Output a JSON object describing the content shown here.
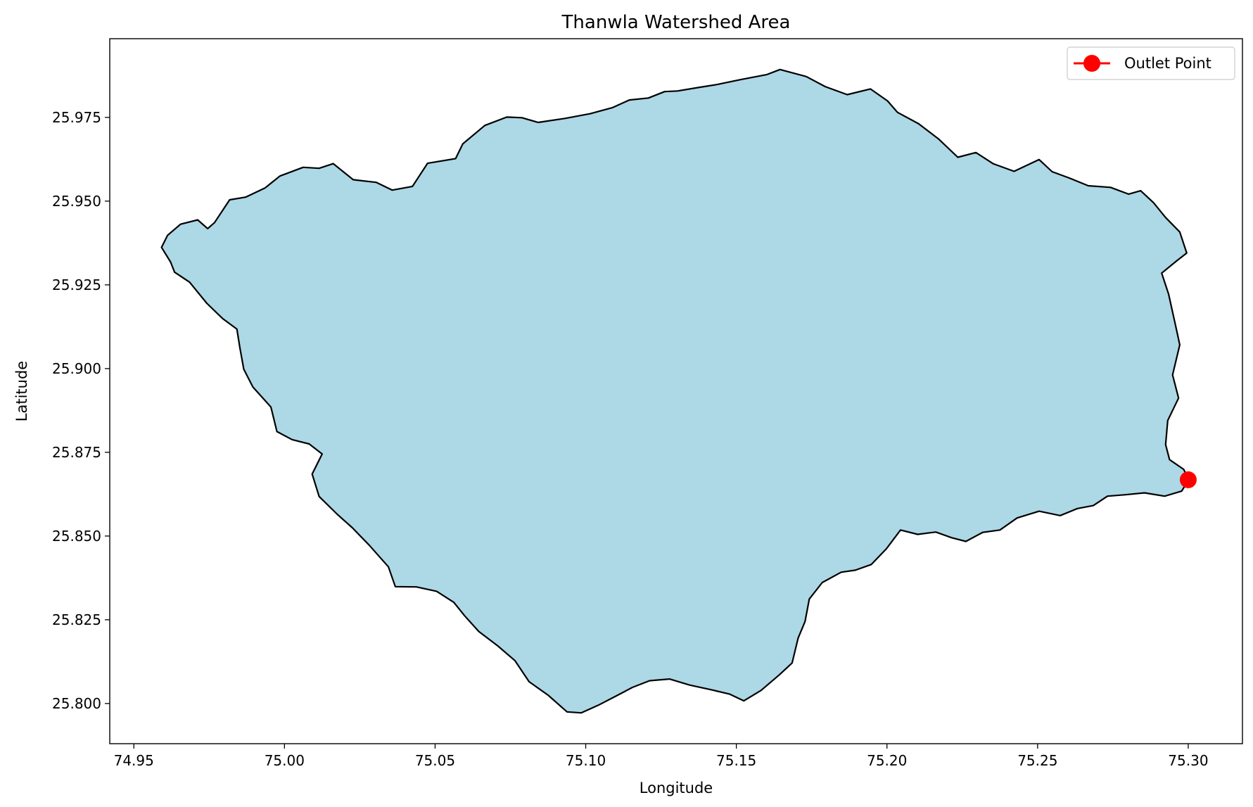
{
  "title": "Thanwla Watershed Area",
  "colors": {
    "watershed_fill": "#add8e6",
    "boundary": "#000000",
    "outlet": "#ff0000"
  },
  "chart_data": {
    "type": "map",
    "title": "Thanwla Watershed Area",
    "xlabel": "Longitude",
    "ylabel": "Latitude",
    "xlim": [
      74.942,
      75.318
    ],
    "ylim": [
      25.788,
      25.9985
    ],
    "x_ticks": [
      "74.95",
      "75.00",
      "75.05",
      "75.10",
      "75.15",
      "75.20",
      "75.25",
      "75.30"
    ],
    "y_ticks": [
      "25.800",
      "25.825",
      "25.850",
      "25.875",
      "25.900",
      "25.925",
      "25.950",
      "25.975"
    ],
    "grid": false,
    "legend": {
      "position": "top-right",
      "entries": [
        "Outlet Point"
      ]
    },
    "outlet_point": {
      "name": "Outlet Point",
      "lon": 75.3,
      "lat": 25.8668
    },
    "watershed_boundary": [
      [
        74.9612,
        25.9398
      ],
      [
        74.9655,
        25.9431
      ],
      [
        74.9712,
        25.9444
      ],
      [
        74.9745,
        25.9418
      ],
      [
        74.9768,
        25.9436
      ],
      [
        74.9818,
        25.9504
      ],
      [
        74.9871,
        25.9512
      ],
      [
        74.9935,
        25.9539
      ],
      [
        74.9985,
        25.9575
      ],
      [
        75.0062,
        25.9601
      ],
      [
        75.0115,
        25.9598
      ],
      [
        75.0162,
        25.9612
      ],
      [
        75.0228,
        25.9564
      ],
      [
        75.0305,
        25.9556
      ],
      [
        75.0358,
        25.9533
      ],
      [
        75.0425,
        25.9544
      ],
      [
        75.0475,
        25.9613
      ],
      [
        75.0568,
        25.9627
      ],
      [
        75.0592,
        25.9671
      ],
      [
        75.0665,
        25.9726
      ],
      [
        75.0738,
        25.9751
      ],
      [
        75.0788,
        25.9749
      ],
      [
        75.0842,
        25.9735
      ],
      [
        75.0931,
        25.9747
      ],
      [
        75.1015,
        25.9761
      ],
      [
        75.1088,
        25.9779
      ],
      [
        75.1145,
        25.9802
      ],
      [
        75.1208,
        25.9808
      ],
      [
        75.1262,
        25.9827
      ],
      [
        75.1305,
        25.9829
      ],
      [
        75.1372,
        25.9839
      ],
      [
        75.1435,
        25.9848
      ],
      [
        75.1515,
        25.9863
      ],
      [
        75.1602,
        25.9878
      ],
      [
        75.1645,
        25.9893
      ],
      [
        75.1732,
        25.9872
      ],
      [
        75.1795,
        25.9842
      ],
      [
        75.1868,
        25.9818
      ],
      [
        75.1945,
        25.9835
      ],
      [
        75.2002,
        25.9799
      ],
      [
        75.2035,
        25.9765
      ],
      [
        75.2105,
        25.9731
      ],
      [
        75.2172,
        25.9685
      ],
      [
        75.2235,
        25.9631
      ],
      [
        75.2295,
        25.9645
      ],
      [
        75.2352,
        25.9612
      ],
      [
        75.2422,
        25.9589
      ],
      [
        75.2505,
        25.9624
      ],
      [
        75.2548,
        25.9588
      ],
      [
        75.2605,
        25.9569
      ],
      [
        75.2668,
        25.9546
      ],
      [
        75.2742,
        25.9541
      ],
      [
        75.2802,
        25.9521
      ],
      [
        75.2842,
        25.9531
      ],
      [
        75.2885,
        25.9495
      ],
      [
        75.2925,
        25.9451
      ],
      [
        75.2972,
        25.9408
      ],
      [
        75.2995,
        25.9345
      ],
      [
        75.2962,
        25.9322
      ],
      [
        75.2912,
        25.9285
      ],
      [
        75.2935,
        25.9222
      ],
      [
        75.2962,
        25.9112
      ],
      [
        75.2972,
        25.9071
      ],
      [
        75.2948,
        25.8981
      ],
      [
        75.2968,
        25.8912
      ],
      [
        75.2932,
        25.8845
      ],
      [
        75.2925,
        25.8773
      ],
      [
        75.2938,
        25.8728
      ],
      [
        75.2985,
        25.8699
      ],
      [
        75.3002,
        25.8668
      ],
      [
        75.2978,
        25.8634
      ],
      [
        75.2922,
        25.8619
      ],
      [
        75.2855,
        25.8629
      ],
      [
        75.2788,
        25.8623
      ],
      [
        75.2732,
        25.8619
      ],
      [
        75.2685,
        25.8591
      ],
      [
        75.2632,
        25.8582
      ],
      [
        75.2575,
        25.8561
      ],
      [
        75.2505,
        25.8574
      ],
      [
        75.2432,
        25.8554
      ],
      [
        75.2375,
        25.8518
      ],
      [
        75.2318,
        25.8511
      ],
      [
        75.2262,
        25.8484
      ],
      [
        75.2215,
        25.8495
      ],
      [
        75.2162,
        25.8512
      ],
      [
        75.2102,
        25.8505
      ],
      [
        75.2045,
        25.8518
      ],
      [
        75.1998,
        25.8462
      ],
      [
        75.1948,
        25.8415
      ],
      [
        75.1895,
        25.8398
      ],
      [
        75.1848,
        25.8392
      ],
      [
        75.1785,
        25.8361
      ],
      [
        75.1742,
        25.8312
      ],
      [
        75.1728,
        25.8245
      ],
      [
        75.1705,
        25.8195
      ],
      [
        75.1685,
        25.8121
      ],
      [
        75.1642,
        25.8085
      ],
      [
        75.1582,
        25.8039
      ],
      [
        75.1525,
        25.8008
      ],
      [
        75.1478,
        25.8028
      ],
      [
        75.1412,
        25.8042
      ],
      [
        75.1345,
        25.8055
      ],
      [
        75.1278,
        25.8073
      ],
      [
        75.1212,
        25.8068
      ],
      [
        75.1155,
        25.8048
      ],
      [
        75.1098,
        25.8021
      ],
      [
        75.1042,
        25.7995
      ],
      [
        75.0985,
        25.7972
      ],
      [
        75.0938,
        25.7975
      ],
      [
        75.0875,
        25.8025
      ],
      [
        75.0812,
        25.8065
      ],
      [
        75.0765,
        25.8128
      ],
      [
        75.0708,
        25.8172
      ],
      [
        75.0645,
        25.8215
      ],
      [
        75.0598,
        25.8262
      ],
      [
        75.0562,
        25.8302
      ],
      [
        75.0505,
        25.8335
      ],
      [
        75.0438,
        25.8348
      ],
      [
        75.0368,
        25.8349
      ],
      [
        75.0345,
        25.8408
      ],
      [
        75.0282,
        25.8472
      ],
      [
        75.0225,
        25.8525
      ],
      [
        75.0175,
        25.8565
      ],
      [
        75.0115,
        25.8618
      ],
      [
        75.0092,
        25.8685
      ],
      [
        75.0125,
        25.8745
      ],
      [
        75.0082,
        25.8775
      ],
      [
        75.0025,
        25.8788
      ],
      [
        74.9975,
        25.8812
      ],
      [
        74.9955,
        25.8885
      ],
      [
        74.9895,
        25.8945
      ],
      [
        74.9865,
        25.8998
      ],
      [
        74.9852,
        25.9062
      ],
      [
        74.9842,
        25.9118
      ],
      [
        74.9795,
        25.9149
      ],
      [
        74.9742,
        25.9195
      ],
      [
        74.9685,
        25.9258
      ],
      [
        74.9635,
        25.9288
      ],
      [
        74.9622,
        25.9318
      ],
      [
        74.9592,
        25.9362
      ]
    ]
  }
}
